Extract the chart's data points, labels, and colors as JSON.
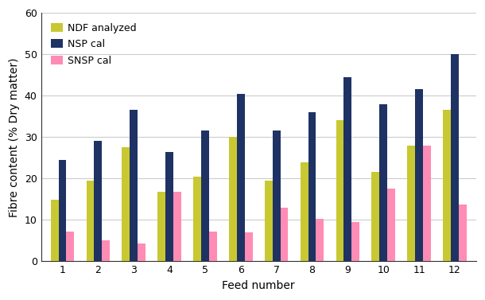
{
  "categories": [
    1,
    2,
    3,
    4,
    5,
    6,
    7,
    8,
    9,
    10,
    11,
    12
  ],
  "ndf_analyzed": [
    14.8,
    19.5,
    27.5,
    16.8,
    20.5,
    30.0,
    19.5,
    24.0,
    34.0,
    21.7,
    28.0,
    36.5
  ],
  "nsp_cal": [
    24.5,
    29.0,
    36.5,
    26.5,
    31.5,
    40.5,
    31.5,
    36.0,
    44.5,
    38.0,
    41.5,
    50.0
  ],
  "snsp_cal": [
    7.2,
    5.0,
    4.3,
    16.8,
    7.2,
    7.0,
    13.0,
    10.3,
    9.5,
    17.5,
    28.0,
    13.7
  ],
  "bar_colors": {
    "ndf": "#c8c832",
    "nsp": "#1e3264",
    "snsp": "#ff8cb4"
  },
  "xlabel": "Feed number",
  "ylabel": "Fibre content (% Dry matter)",
  "ylim": [
    0,
    60
  ],
  "yticks": [
    0,
    10,
    20,
    30,
    40,
    50,
    60
  ],
  "legend_labels": [
    "NDF analyzed",
    "NSP cal",
    "SNSP cal"
  ],
  "bar_width": 0.22,
  "grid_color": "#cccccc",
  "background_color": "#ffffff",
  "xlabel_fontsize": 10,
  "ylabel_fontsize": 10,
  "tick_fontsize": 9,
  "legend_fontsize": 9,
  "figsize": [
    6.1,
    3.77
  ],
  "dpi": 100
}
